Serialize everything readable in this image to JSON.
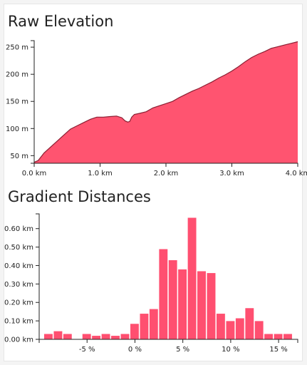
{
  "colors": {
    "fill": "#ff5470",
    "bar": "#ff4f70",
    "bar_stroke": "#ffffff",
    "axis": "#222222"
  },
  "chart_data": [
    {
      "type": "area",
      "title": "Raw Elevation",
      "xlabel": "",
      "ylabel": "",
      "x_unit": "km",
      "y_unit": "m",
      "xlim": [
        0,
        4.0
      ],
      "ylim": [
        36,
        262
      ],
      "x_ticks": [
        0,
        1,
        2,
        3,
        4
      ],
      "x_tick_labels": [
        "0.0 km",
        "1.0 km",
        "2.0 km",
        "3.0 km",
        "4.0 km"
      ],
      "y_ticks": [
        50,
        100,
        150,
        200,
        250
      ],
      "y_tick_labels": [
        "50 m",
        "100 m",
        "150 m",
        "200 m",
        "250 m"
      ],
      "x": [
        0.0,
        0.06,
        0.15,
        0.25,
        0.35,
        0.45,
        0.55,
        0.65,
        0.75,
        0.85,
        0.95,
        1.05,
        1.15,
        1.25,
        1.33,
        1.38,
        1.42,
        1.45,
        1.48,
        1.52,
        1.6,
        1.7,
        1.8,
        1.9,
        2.0,
        2.1,
        2.2,
        2.3,
        2.4,
        2.5,
        2.6,
        2.7,
        2.8,
        2.9,
        3.0,
        3.1,
        3.2,
        3.3,
        3.4,
        3.5,
        3.6,
        3.7,
        3.8,
        3.9,
        4.0
      ],
      "y": [
        38,
        41,
        55,
        66,
        77,
        88,
        99,
        105,
        111,
        117,
        121,
        121,
        122,
        123,
        120,
        114,
        112,
        113,
        121,
        126,
        128,
        131,
        138,
        142,
        146,
        150,
        157,
        163,
        169,
        174,
        180,
        186,
        193,
        199,
        206,
        214,
        223,
        231,
        237,
        242,
        248,
        251,
        254,
        257,
        260
      ]
    },
    {
      "type": "bar",
      "title": "Gradient Distances",
      "xlabel": "",
      "ylabel": "",
      "x_unit": "%",
      "y_unit": "km",
      "ylim": [
        0,
        0.68
      ],
      "xlim": [
        -10,
        17
      ],
      "x_ticks": [
        -5,
        0,
        5,
        10,
        15
      ],
      "x_tick_labels": [
        "-5 %",
        "0 %",
        "5 %",
        "10 %",
        "15 %"
      ],
      "y_ticks": [
        0,
        0.1,
        0.2,
        0.3,
        0.4,
        0.5,
        0.6
      ],
      "y_tick_labels": [
        "0.00 km",
        "0.10 km",
        "0.20 km",
        "0.30 km",
        "0.40 km",
        "0.50 km",
        "0.60 km"
      ],
      "categories": [
        -9,
        -8,
        -7,
        -6,
        -5,
        -4,
        -3,
        -2,
        -1,
        0,
        1,
        2,
        3,
        4,
        5,
        6,
        7,
        8,
        9,
        10,
        11,
        12,
        13,
        14,
        15,
        16
      ],
      "values": [
        0.03,
        0.045,
        0.03,
        0.0,
        0.03,
        0.02,
        0.03,
        0.02,
        0.03,
        0.085,
        0.14,
        0.165,
        0.49,
        0.43,
        0.38,
        0.66,
        0.37,
        0.36,
        0.14,
        0.1,
        0.115,
        0.17,
        0.1,
        0.03,
        0.03,
        0.03
      ]
    }
  ]
}
